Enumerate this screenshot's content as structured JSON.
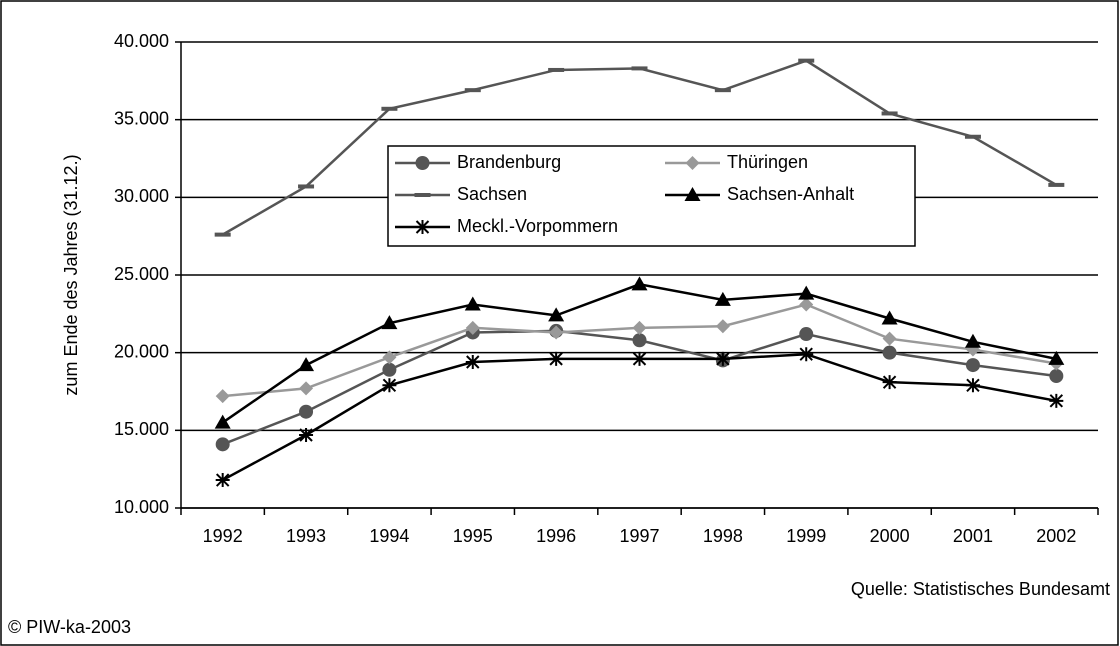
{
  "chart_data": {
    "type": "line",
    "y_label": "zum Ende des Jahres (31.12.)",
    "source": "Quelle: Statistisches Bundesamt",
    "copyright": "© PIW-ka-2003",
    "categories": [
      "1992",
      "1993",
      "1994",
      "1995",
      "1996",
      "1997",
      "1998",
      "1999",
      "2000",
      "2001",
      "2002"
    ],
    "ylim": [
      10000,
      40000
    ],
    "yticks": [
      {
        "value": 10000,
        "label": "10.000"
      },
      {
        "value": 15000,
        "label": "15.000"
      },
      {
        "value": 20000,
        "label": "20.000"
      },
      {
        "value": 25000,
        "label": "25.000"
      },
      {
        "value": 30000,
        "label": "30.000"
      },
      {
        "value": 35000,
        "label": "35.000"
      },
      {
        "value": 40000,
        "label": "40.000"
      }
    ],
    "grid": true,
    "series": [
      {
        "name": "Brandenburg",
        "color": "#555555",
        "marker": "circle",
        "values": [
          14100,
          16200,
          18900,
          21300,
          21400,
          20800,
          19500,
          21200,
          20000,
          19200,
          18500
        ]
      },
      {
        "name": "Thüringen",
        "color": "#999999",
        "marker": "diamond",
        "values": [
          17200,
          17700,
          19700,
          21600,
          21300,
          21600,
          21700,
          23100,
          20900,
          20200,
          19300
        ]
      },
      {
        "name": "Sachsen",
        "color": "#555555",
        "marker": "dash",
        "values": [
          27600,
          30700,
          35700,
          36900,
          38200,
          38300,
          36900,
          38800,
          35400,
          33900,
          30800
        ]
      },
      {
        "name": "Sachsen-Anhalt",
        "color": "#000000",
        "marker": "triangle",
        "values": [
          15500,
          19200,
          21900,
          23100,
          22400,
          24400,
          23400,
          23800,
          22200,
          20700,
          19600
        ]
      },
      {
        "name": "Meckl.-Vorpommern",
        "color": "#000000",
        "marker": "asterisk",
        "values": [
          11800,
          14700,
          17900,
          19400,
          19600,
          19600,
          19600,
          19900,
          18100,
          17900,
          16900
        ]
      }
    ]
  }
}
